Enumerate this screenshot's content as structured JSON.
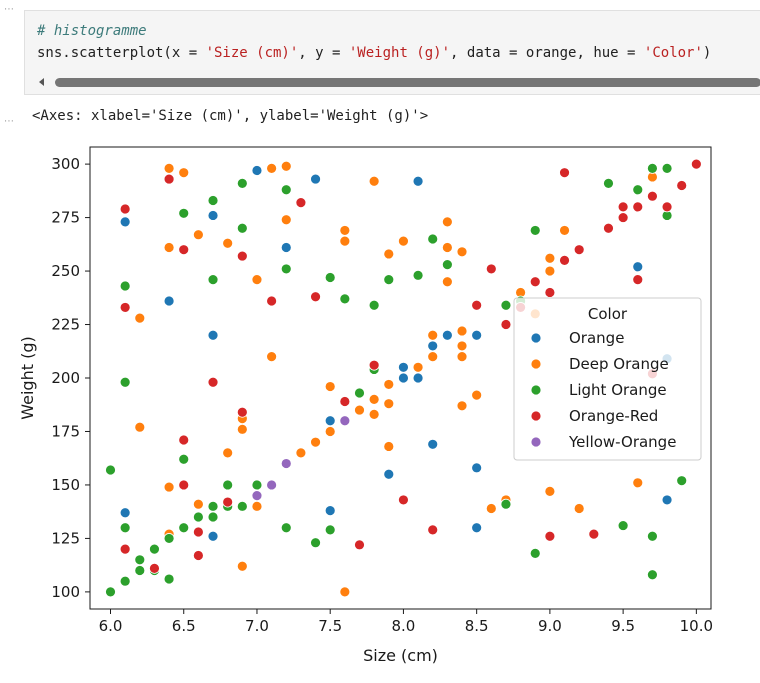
{
  "notebook": {
    "code_comment": "# histogramme",
    "code_parts": [
      {
        "text": "sns.scatterplot(x = ",
        "cls": ""
      },
      {
        "text": "'Size (cm)'",
        "cls": "str"
      },
      {
        "text": ", y = ",
        "cls": ""
      },
      {
        "text": "'Weight (g)'",
        "cls": "str"
      },
      {
        "text": ", data = orange, hue = ",
        "cls": ""
      },
      {
        "text": "'Color'",
        "cls": "str"
      },
      {
        "text": ") ",
        "cls": ""
      }
    ],
    "output_text": "<Axes: xlabel='Size (cm)', ylabel='Weight (g)'>"
  },
  "chart_data": {
    "type": "scatter",
    "xlabel": "Size (cm)",
    "ylabel": "Weight (g)",
    "xlim": [
      5.86,
      10.1
    ],
    "ylim": [
      92,
      308
    ],
    "xticks": [
      6.0,
      6.5,
      7.0,
      7.5,
      8.0,
      8.5,
      9.0,
      9.5,
      10.0
    ],
    "xtick_labels": [
      "6.0",
      "6.5",
      "7.0",
      "7.5",
      "8.0",
      "8.5",
      "9.0",
      "9.5",
      "10.0"
    ],
    "yticks": [
      100,
      125,
      150,
      175,
      200,
      225,
      250,
      275,
      300
    ],
    "ytick_labels": [
      "100",
      "125",
      "150",
      "175",
      "200",
      "225",
      "250",
      "275",
      "300"
    ],
    "grid": false,
    "legend": {
      "title": "Color",
      "placement": "center-right"
    },
    "series": [
      {
        "name": "Orange",
        "color": "#1f77b4",
        "points": [
          [
            6.1,
            137
          ],
          [
            6.1,
            273
          ],
          [
            6.4,
            236
          ],
          [
            6.7,
            220
          ],
          [
            6.7,
            276
          ],
          [
            6.7,
            126
          ],
          [
            7.0,
            297
          ],
          [
            7.2,
            261
          ],
          [
            7.4,
            293
          ],
          [
            7.5,
            180
          ],
          [
            7.5,
            138
          ],
          [
            7.8,
            206
          ],
          [
            7.9,
            155
          ],
          [
            8.0,
            200
          ],
          [
            8.0,
            205
          ],
          [
            8.1,
            292
          ],
          [
            8.1,
            200
          ],
          [
            8.2,
            169
          ],
          [
            8.2,
            215
          ],
          [
            8.3,
            220
          ],
          [
            8.5,
            158
          ],
          [
            8.5,
            130
          ],
          [
            8.5,
            220
          ],
          [
            9.6,
            252
          ],
          [
            9.8,
            209
          ],
          [
            9.8,
            143
          ]
        ]
      },
      {
        "name": "Deep Orange",
        "color": "#ff7f0e",
        "points": [
          [
            6.2,
            228
          ],
          [
            6.2,
            177
          ],
          [
            6.4,
            298
          ],
          [
            6.4,
            261
          ],
          [
            6.4,
            149
          ],
          [
            6.4,
            127
          ],
          [
            6.5,
            296
          ],
          [
            6.5,
            260
          ],
          [
            6.6,
            267
          ],
          [
            6.6,
            141
          ],
          [
            6.7,
            140
          ],
          [
            6.8,
            263
          ],
          [
            6.8,
            165
          ],
          [
            6.9,
            112
          ],
          [
            6.9,
            176
          ],
          [
            6.9,
            181
          ],
          [
            7.0,
            246
          ],
          [
            7.0,
            140
          ],
          [
            7.1,
            298
          ],
          [
            7.1,
            210
          ],
          [
            7.2,
            299
          ],
          [
            7.2,
            274
          ],
          [
            7.3,
            165
          ],
          [
            7.4,
            170
          ],
          [
            7.5,
            196
          ],
          [
            7.5,
            175
          ],
          [
            7.6,
            269
          ],
          [
            7.6,
            264
          ],
          [
            7.6,
            100
          ],
          [
            7.7,
            185
          ],
          [
            7.8,
            292
          ],
          [
            7.8,
            190
          ],
          [
            7.8,
            183
          ],
          [
            7.9,
            197
          ],
          [
            7.9,
            188
          ],
          [
            7.9,
            258
          ],
          [
            7.9,
            168
          ],
          [
            8.0,
            264
          ],
          [
            8.1,
            205
          ],
          [
            8.2,
            220
          ],
          [
            8.2,
            210
          ],
          [
            8.3,
            273
          ],
          [
            8.3,
            261
          ],
          [
            8.3,
            245
          ],
          [
            8.4,
            259
          ],
          [
            8.4,
            222
          ],
          [
            8.4,
            215
          ],
          [
            8.4,
            210
          ],
          [
            8.4,
            187
          ],
          [
            8.5,
            192
          ],
          [
            8.6,
            139
          ],
          [
            8.7,
            143
          ],
          [
            8.8,
            240
          ],
          [
            8.9,
            230
          ],
          [
            9.0,
            256
          ],
          [
            9.0,
            250
          ],
          [
            9.0,
            147
          ],
          [
            9.1,
            269
          ],
          [
            9.2,
            139
          ],
          [
            9.6,
            151
          ],
          [
            9.7,
            294
          ]
        ]
      },
      {
        "name": "Light Orange",
        "color": "#2ca02c",
        "points": [
          [
            6.0,
            157
          ],
          [
            6.0,
            100
          ],
          [
            6.1,
            243
          ],
          [
            6.1,
            198
          ],
          [
            6.1,
            130
          ],
          [
            6.1,
            105
          ],
          [
            6.2,
            115
          ],
          [
            6.2,
            110
          ],
          [
            6.3,
            120
          ],
          [
            6.3,
            110
          ],
          [
            6.4,
            125
          ],
          [
            6.4,
            106
          ],
          [
            6.5,
            277
          ],
          [
            6.5,
            162
          ],
          [
            6.5,
            130
          ],
          [
            6.6,
            135
          ],
          [
            6.7,
            283
          ],
          [
            6.7,
            246
          ],
          [
            6.7,
            140
          ],
          [
            6.7,
            135
          ],
          [
            6.8,
            150
          ],
          [
            6.8,
            140
          ],
          [
            6.9,
            291
          ],
          [
            6.9,
            270
          ],
          [
            6.9,
            140
          ],
          [
            7.0,
            150
          ],
          [
            7.2,
            288
          ],
          [
            7.2,
            251
          ],
          [
            7.2,
            130
          ],
          [
            7.4,
            123
          ],
          [
            7.5,
            247
          ],
          [
            7.5,
            129
          ],
          [
            7.6,
            237
          ],
          [
            7.7,
            193
          ],
          [
            7.8,
            234
          ],
          [
            7.8,
            204
          ],
          [
            7.9,
            246
          ],
          [
            8.1,
            248
          ],
          [
            8.2,
            265
          ],
          [
            8.3,
            253
          ],
          [
            8.7,
            141
          ],
          [
            8.7,
            234
          ],
          [
            8.8,
            236
          ],
          [
            8.9,
            269
          ],
          [
            8.9,
            118
          ],
          [
            9.4,
            291
          ],
          [
            9.5,
            131
          ],
          [
            9.6,
            288
          ],
          [
            9.7,
            298
          ],
          [
            9.7,
            285
          ],
          [
            9.7,
            126
          ],
          [
            9.7,
            108
          ],
          [
            9.8,
            298
          ],
          [
            9.8,
            276
          ],
          [
            9.9,
            152
          ]
        ]
      },
      {
        "name": "Orange-Red",
        "color": "#d62728",
        "points": [
          [
            6.1,
            279
          ],
          [
            6.1,
            233
          ],
          [
            6.1,
            120
          ],
          [
            6.3,
            111
          ],
          [
            6.4,
            293
          ],
          [
            6.5,
            260
          ],
          [
            6.5,
            171
          ],
          [
            6.5,
            150
          ],
          [
            6.6,
            128
          ],
          [
            6.6,
            117
          ],
          [
            6.7,
            198
          ],
          [
            6.8,
            142
          ],
          [
            6.9,
            257
          ],
          [
            6.9,
            184
          ],
          [
            7.1,
            236
          ],
          [
            7.3,
            282
          ],
          [
            7.4,
            238
          ],
          [
            7.6,
            189
          ],
          [
            7.7,
            122
          ],
          [
            7.8,
            206
          ],
          [
            8.0,
            143
          ],
          [
            8.2,
            129
          ],
          [
            8.5,
            234
          ],
          [
            8.6,
            251
          ],
          [
            8.7,
            225
          ],
          [
            8.8,
            233
          ],
          [
            8.9,
            245
          ],
          [
            9.0,
            240
          ],
          [
            9.0,
            126
          ],
          [
            9.1,
            296
          ],
          [
            9.1,
            255
          ],
          [
            9.2,
            260
          ],
          [
            9.3,
            127
          ],
          [
            9.4,
            270
          ],
          [
            9.5,
            275
          ],
          [
            9.5,
            280
          ],
          [
            9.6,
            246
          ],
          [
            9.6,
            280
          ],
          [
            9.7,
            202
          ],
          [
            9.7,
            285
          ],
          [
            9.8,
            280
          ],
          [
            9.9,
            290
          ],
          [
            10.0,
            300
          ]
        ]
      },
      {
        "name": "Yellow-Orange",
        "color": "#9467bd",
        "points": [
          [
            7.0,
            145
          ],
          [
            7.1,
            150
          ],
          [
            7.2,
            160
          ],
          [
            7.6,
            180
          ]
        ]
      }
    ]
  }
}
